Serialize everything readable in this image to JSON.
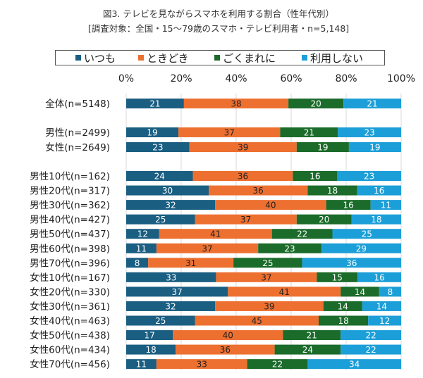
{
  "chart_data": {
    "type": "bar",
    "orientation": "horizontal",
    "stacked": "percent",
    "title": "図3. テレビを見ながらスマホを利用する割合（性年代別）",
    "subtitle": "[調査対象：全国・15～79歳のスマホ・テレビ利用者・n=5,148]",
    "xlim": [
      0,
      100
    ],
    "xticks": [
      "0%",
      "20%",
      "40%",
      "60%",
      "80%",
      "100%"
    ],
    "grid": true,
    "legend_position": "top",
    "categories": [
      "全体(n=5148)",
      "男性(n=2499)",
      "女性(n=2649)",
      "男性10代(n=162)",
      "男性20代(n=317)",
      "男性30代(n=362)",
      "男性40代(n=427)",
      "男性50代(n=437)",
      "男性60代(n=398)",
      "男性70代(n=396)",
      "女性10代(n=167)",
      "女性20代(n=330)",
      "女性30代(n=361)",
      "女性40代(n=463)",
      "女性50代(n=438)",
      "女性60代(n=434)",
      "女性70代(n=456)"
    ],
    "series": [
      {
        "name": "いつも",
        "color": "#1a5e82",
        "label_color": "#ffffff",
        "values": [
          21,
          19,
          23,
          24,
          30,
          32,
          25,
          12,
          11,
          8,
          33,
          37,
          32,
          25,
          17,
          18,
          11
        ]
      },
      {
        "name": "ときどき",
        "color": "#ed7031",
        "label_color": "#222222",
        "values": [
          38,
          37,
          39,
          36,
          36,
          40,
          37,
          41,
          37,
          31,
          37,
          41,
          39,
          45,
          40,
          36,
          33
        ]
      },
      {
        "name": "ごくまれに",
        "color": "#1b6b2a",
        "label_color": "#ffffff",
        "values": [
          20,
          21,
          19,
          16,
          18,
          16,
          20,
          22,
          23,
          25,
          15,
          14,
          14,
          18,
          21,
          24,
          22
        ]
      },
      {
        "name": "利用しない",
        "color": "#1c9fd8",
        "label_color": "#ffffff",
        "values": [
          21,
          23,
          19,
          23,
          16,
          11,
          18,
          25,
          29,
          36,
          16,
          8,
          14,
          12,
          22,
          22,
          34
        ]
      }
    ]
  }
}
